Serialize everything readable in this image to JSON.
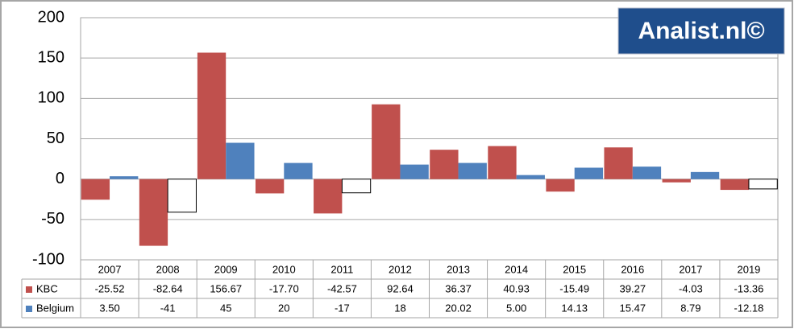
{
  "chart_data": {
    "type": "bar",
    "watermark": "Analist.nl©",
    "categories": [
      "2007",
      "2008",
      "2009",
      "2010",
      "2011",
      "2012",
      "2013",
      "2014",
      "2015",
      "2016",
      "2017",
      "2019"
    ],
    "series": [
      {
        "name": "KBC",
        "color": "#c0504d",
        "values": [
          -25.52,
          -82.64,
          156.67,
          -17.7,
          -42.57,
          92.64,
          36.37,
          40.93,
          -15.49,
          39.27,
          -4.03,
          -13.36
        ],
        "value_labels": [
          "-25.52",
          "-82.64",
          "156.67",
          "-17.70",
          "-42.57",
          "92.64",
          "36.37",
          "40.93",
          "-15.49",
          "39.27",
          "-4.03",
          "-13.36"
        ]
      },
      {
        "name": "Belgium",
        "color": "#4f81bd",
        "negative_fill": "#ffffff",
        "values": [
          3.5,
          -41,
          45,
          20,
          -17,
          18,
          20.02,
          5.0,
          14.13,
          15.47,
          8.79,
          -12.18
        ],
        "value_labels": [
          "3.50",
          "-41",
          "45",
          "20",
          "-17",
          "18",
          "20.02",
          "5.00",
          "14.13",
          "15.47",
          "8.79",
          "-12.18"
        ]
      }
    ],
    "ylim": [
      -100,
      200
    ],
    "yticks": [
      -100,
      -50,
      0,
      50,
      100,
      150,
      200
    ],
    "grid": true
  }
}
